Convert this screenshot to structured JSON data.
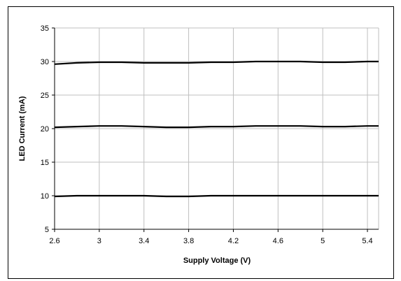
{
  "chart_data": {
    "type": "line",
    "title": "",
    "xlabel": "Supply Voltage (V)",
    "ylabel": "LED Current (mA)",
    "xlim": [
      2.6,
      5.5
    ],
    "ylim": [
      5,
      35
    ],
    "xticks": [
      2.6,
      3,
      3.4,
      3.8,
      4.2,
      4.6,
      5,
      5.4
    ],
    "xtick_labels": [
      "2.6",
      "3",
      "3.4",
      "3.8",
      "4.2",
      "4.6",
      "5",
      "5.4"
    ],
    "yticks": [
      5,
      10,
      15,
      20,
      25,
      30,
      35
    ],
    "ytick_labels": [
      "5",
      "10",
      "15",
      "20",
      "25",
      "30",
      "35"
    ],
    "grid": true,
    "legend": "none",
    "line_color": "#000000",
    "grid_color": "#bfbfbf",
    "series": [
      {
        "x": [
          2.6,
          2.8,
          3.0,
          3.2,
          3.4,
          3.6,
          3.8,
          4.0,
          4.2,
          4.4,
          4.6,
          4.8,
          5.0,
          5.2,
          5.4,
          5.5
        ],
        "values": [
          29.6,
          29.8,
          29.9,
          29.9,
          29.8,
          29.8,
          29.8,
          29.9,
          29.9,
          30.0,
          30.0,
          30.0,
          29.9,
          29.9,
          30.0,
          30.0
        ]
      },
      {
        "x": [
          2.6,
          2.8,
          3.0,
          3.2,
          3.4,
          3.6,
          3.8,
          4.0,
          4.2,
          4.4,
          4.6,
          4.8,
          5.0,
          5.2,
          5.4,
          5.5
        ],
        "values": [
          20.2,
          20.3,
          20.4,
          20.4,
          20.3,
          20.2,
          20.2,
          20.3,
          20.3,
          20.4,
          20.4,
          20.4,
          20.3,
          20.3,
          20.4,
          20.4
        ]
      },
      {
        "x": [
          2.6,
          2.8,
          3.0,
          3.2,
          3.4,
          3.6,
          3.8,
          4.0,
          4.2,
          4.4,
          4.6,
          4.8,
          5.0,
          5.2,
          5.4,
          5.5
        ],
        "values": [
          9.9,
          10.0,
          10.0,
          10.0,
          10.0,
          9.9,
          9.9,
          10.0,
          10.0,
          10.0,
          10.0,
          10.0,
          10.0,
          10.0,
          10.0,
          10.0
        ]
      }
    ]
  }
}
